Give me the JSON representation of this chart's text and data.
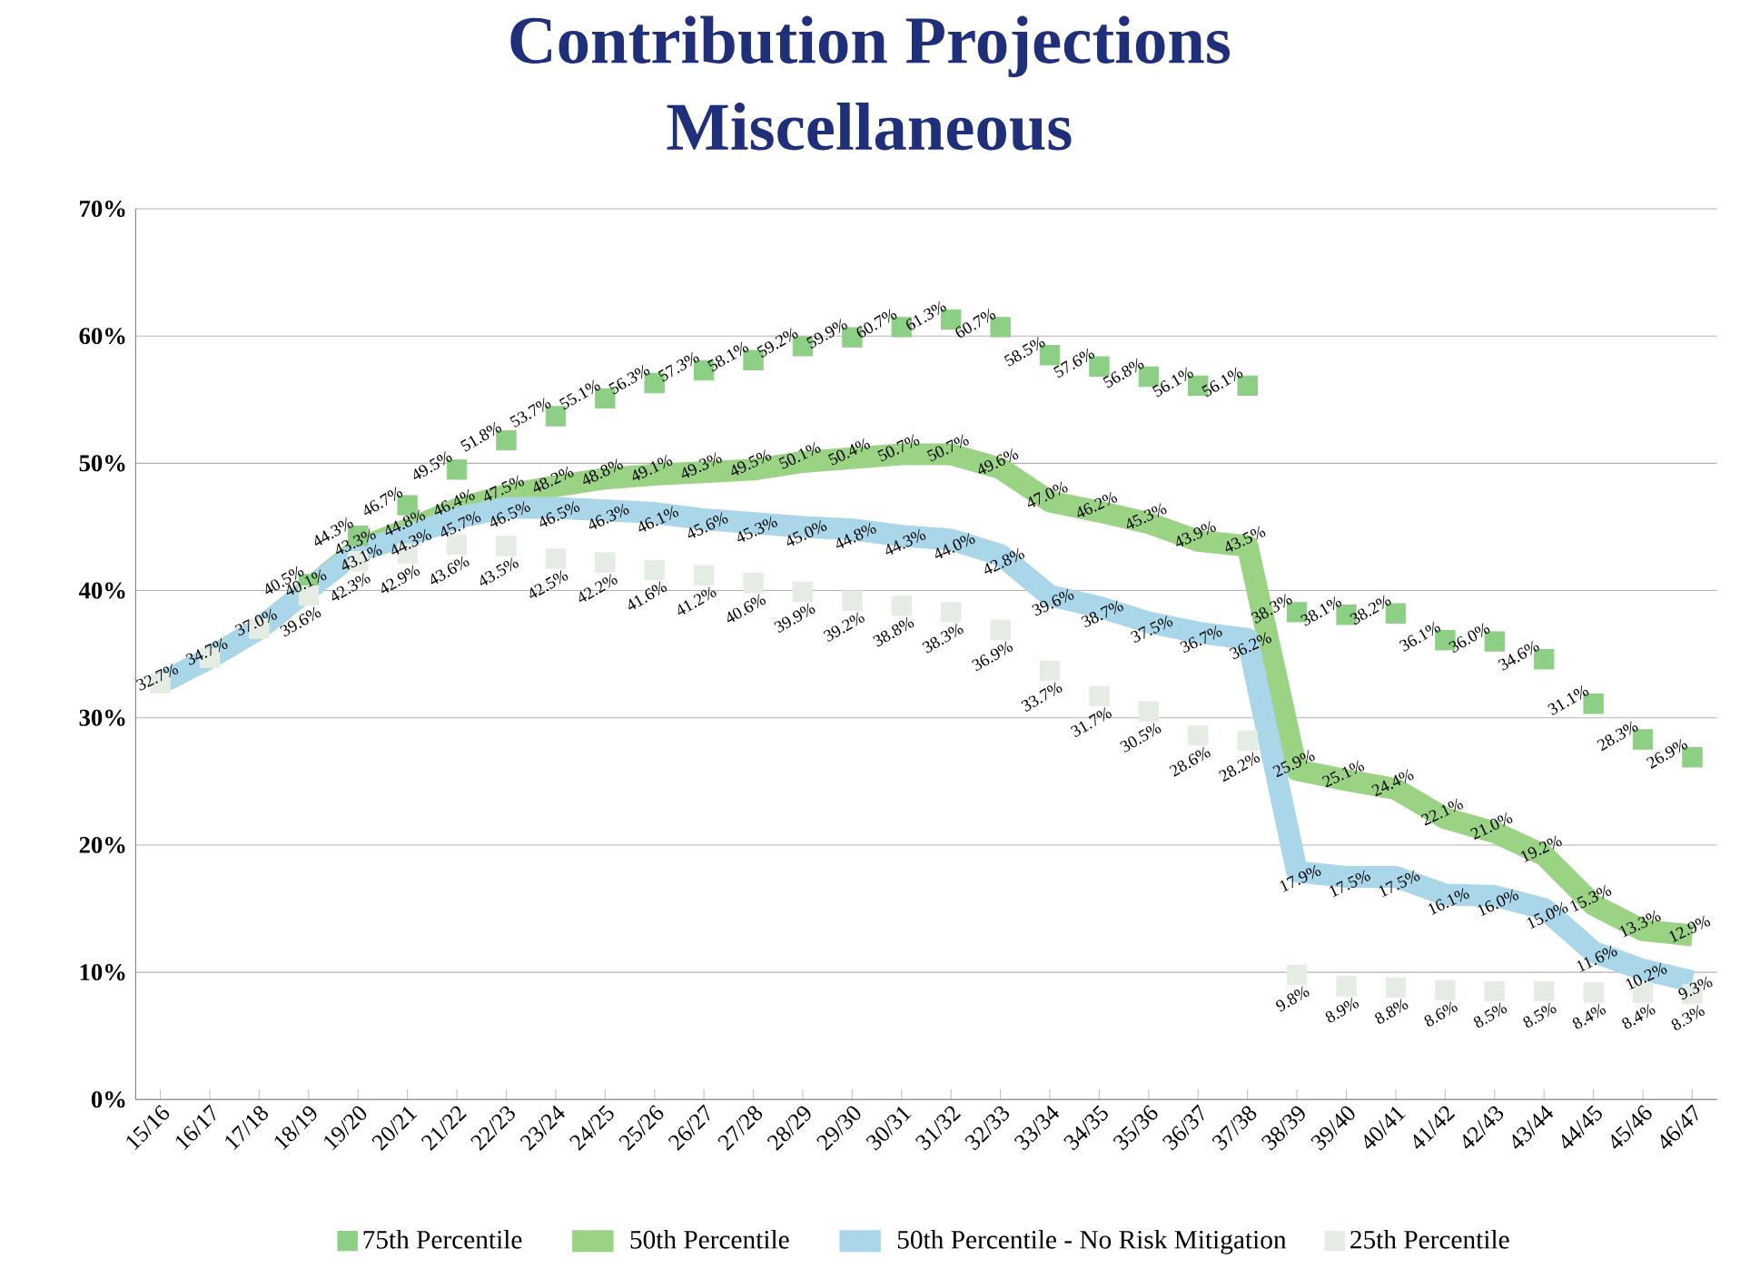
{
  "chart_data": {
    "type": "line",
    "title": "Contribution Projections",
    "subtitle": "Miscellaneous",
    "categories": [
      "15/16",
      "16/17",
      "17/18",
      "18/19",
      "19/20",
      "20/21",
      "21/22",
      "22/23",
      "23/24",
      "24/25",
      "25/26",
      "26/27",
      "27/28",
      "28/29",
      "29/30",
      "30/31",
      "31/32",
      "32/33",
      "33/34",
      "34/35",
      "35/36",
      "36/37",
      "37/38",
      "38/39",
      "39/40",
      "40/41",
      "41/42",
      "42/43",
      "43/44",
      "44/45",
      "45/46",
      "46/47"
    ],
    "series": [
      {
        "name": "75th Percentile",
        "type": "scatter",
        "marker": "square",
        "color": "#8ecf86",
        "values": [
          null,
          null,
          null,
          40.5,
          44.3,
          46.7,
          49.5,
          51.8,
          53.7,
          55.1,
          56.3,
          57.3,
          58.1,
          59.2,
          59.9,
          60.7,
          61.3,
          60.7,
          58.5,
          57.6,
          56.8,
          56.1,
          56.1,
          38.3,
          38.1,
          38.2,
          36.1,
          36.0,
          34.6,
          31.1,
          28.3,
          26.9
        ],
        "value_labels": [
          null,
          null,
          null,
          "40.5%",
          "44.3%",
          "46.7%",
          "49.5%",
          "51.8%",
          "53.7%",
          "55.1%",
          "56.3%",
          "57.3%",
          "58.1%",
          "59.2%",
          "59.9%",
          "60.7%",
          "61.3%",
          "60.7%",
          "58.5%",
          "57.6%",
          "56.8%",
          "56.1%",
          "56.1%",
          "38.3%",
          "38.1%",
          "38.2%",
          "36.1%",
          "36.0%",
          "34.6%",
          "31.1%",
          "28.3%",
          "26.9%"
        ]
      },
      {
        "name": "50th Percentile",
        "marker": "none",
        "color": "#9bd384",
        "values": [
          32.7,
          34.7,
          37.0,
          40.1,
          43.3,
          44.8,
          46.4,
          47.5,
          48.2,
          48.8,
          49.1,
          49.3,
          49.5,
          50.1,
          50.4,
          50.7,
          50.7,
          49.6,
          47.0,
          46.2,
          45.3,
          43.9,
          43.5,
          25.9,
          25.1,
          24.4,
          22.1,
          21.0,
          19.2,
          15.3,
          13.3,
          12.9
        ],
        "value_labels": [
          "32.7%",
          "34.7%",
          "37.0%",
          "40.1%",
          "43.3%",
          "44.8%",
          "46.4%",
          "47.5%",
          "48.2%",
          "48.8%",
          "49.1%",
          "49.3%",
          "49.5%",
          "50.1%",
          "50.4%",
          "50.7%",
          "50.7%",
          "49.6%",
          "47.0%",
          "46.2%",
          "45.3%",
          "43.9%",
          "43.5%",
          "25.9%",
          "25.1%",
          "24.4%",
          "22.1%",
          "21.0%",
          "19.2%",
          "15.3%",
          "13.3%",
          "12.9%"
        ]
      },
      {
        "name": "50th Percentile - No Risk Mitigation",
        "marker": "none",
        "color": "#a9d6e8",
        "values": [
          32.7,
          34.7,
          37.0,
          40.1,
          43.1,
          44.3,
          45.7,
          46.5,
          46.5,
          46.3,
          46.1,
          45.6,
          45.3,
          45.0,
          44.8,
          44.3,
          44.0,
          42.8,
          39.6,
          38.7,
          37.5,
          36.7,
          36.2,
          17.9,
          17.5,
          17.5,
          16.1,
          16.0,
          15.0,
          11.6,
          10.2,
          9.3
        ],
        "value_labels": [
          null,
          null,
          null,
          null,
          "43.1%",
          "44.3%",
          "45.7%",
          "46.5%",
          "46.5%",
          "46.3%",
          "46.1%",
          "45.6%",
          "45.3%",
          "45.0%",
          "44.8%",
          "44.3%",
          "44.0%",
          "42.8%",
          "39.6%",
          "38.7%",
          "37.5%",
          "36.7%",
          "36.2%",
          "17.9%",
          "17.5%",
          "17.5%",
          "16.1%",
          "16.0%",
          "15.0%",
          "11.6%",
          "10.2%",
          "9.3%"
        ]
      },
      {
        "name": "25th Percentile",
        "type": "scatter",
        "marker": "square",
        "color": "#e4ece4",
        "values": [
          32.7,
          34.7,
          37.0,
          39.6,
          42.3,
          42.9,
          43.6,
          43.5,
          42.5,
          42.2,
          41.6,
          41.2,
          40.6,
          39.9,
          39.2,
          38.8,
          38.3,
          36.9,
          33.7,
          31.7,
          30.5,
          28.6,
          28.2,
          9.8,
          8.9,
          8.8,
          8.6,
          8.5,
          8.5,
          8.4,
          8.4,
          8.3
        ],
        "value_labels": [
          null,
          null,
          null,
          "39.6%",
          "42.3%",
          "42.9%",
          "43.6%",
          "43.5%",
          "42.5%",
          "42.2%",
          "41.6%",
          "41.2%",
          "40.6%",
          "39.9%",
          "39.2%",
          "38.8%",
          "38.3%",
          "36.9%",
          "33.7%",
          "31.7%",
          "30.5%",
          "28.6%",
          "28.2%",
          "9.8%",
          "8.9%",
          "8.8%",
          "8.6%",
          "8.5%",
          "8.5%",
          "8.4%",
          "8.4%",
          "8.3%"
        ]
      }
    ],
    "ylim": [
      0,
      70
    ],
    "yticks": [
      {
        "value": 0,
        "label": "0%"
      },
      {
        "value": 10,
        "label": "10%"
      },
      {
        "value": 20,
        "label": "20%"
      },
      {
        "value": 30,
        "label": "30%"
      },
      {
        "value": 40,
        "label": "40%"
      },
      {
        "value": 50,
        "label": "50%"
      },
      {
        "value": 60,
        "label": "60%"
      },
      {
        "value": 70,
        "label": "70%"
      }
    ],
    "grid": "y",
    "legend": "bottom"
  }
}
